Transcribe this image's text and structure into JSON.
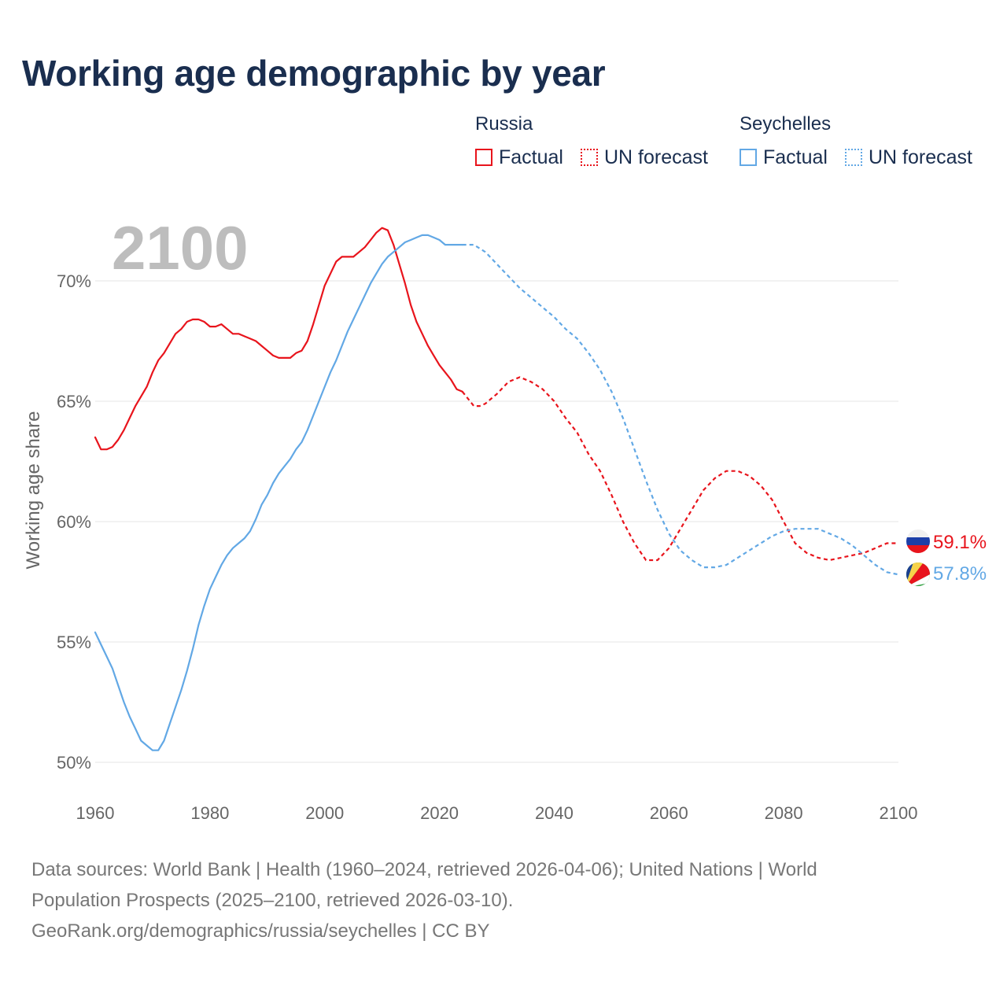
{
  "title": "Working age demographic by year",
  "legend": {
    "groups": [
      {
        "name": "Russia",
        "color": "#e8141c",
        "factual_label": "Factual",
        "forecast_label": "UN forecast"
      },
      {
        "name": "Seychelles",
        "color": "#62a8e5",
        "factual_label": "Factual",
        "forecast_label": "UN forecast"
      }
    ]
  },
  "year_watermark": "2100",
  "end_labels": {
    "russia": "59.1%",
    "seychelles": "57.8%"
  },
  "footer": {
    "line1": "Data sources: World Bank | Health (1960–2024, retrieved 2026-04-06); United Nations | World",
    "line2": "Population Prospects (2025–2100, retrieved 2026-03-10).",
    "line3": "GeoRank.org/demographics/russia/seychelles | CC BY"
  },
  "chart_data": {
    "type": "line",
    "title": "Working age demographic by year",
    "xlabel": "",
    "ylabel": "Working age share",
    "xlim": [
      1960,
      2100
    ],
    "ylim": [
      50,
      72.5
    ],
    "x_ticks": [
      1960,
      1980,
      2000,
      2020,
      2040,
      2060,
      2080,
      2100
    ],
    "y_ticks": [
      50,
      55,
      60,
      65,
      70
    ],
    "y_tick_labels": [
      "50%",
      "55%",
      "60%",
      "65%",
      "70%"
    ],
    "grid": "horizontal",
    "factual_end_year": 2024,
    "forecast_start_year": 2025,
    "series": [
      {
        "name": "Russia",
        "color": "#e8141c",
        "end_label": "59.1%",
        "points": [
          [
            1960,
            63.5
          ],
          [
            1961,
            63.0
          ],
          [
            1962,
            63.0
          ],
          [
            1963,
            63.1
          ],
          [
            1964,
            63.4
          ],
          [
            1965,
            63.8
          ],
          [
            1966,
            64.3
          ],
          [
            1967,
            64.8
          ],
          [
            1968,
            65.2
          ],
          [
            1969,
            65.6
          ],
          [
            1970,
            66.2
          ],
          [
            1971,
            66.7
          ],
          [
            1972,
            67.0
          ],
          [
            1973,
            67.4
          ],
          [
            1974,
            67.8
          ],
          [
            1975,
            68.0
          ],
          [
            1976,
            68.3
          ],
          [
            1977,
            68.4
          ],
          [
            1978,
            68.4
          ],
          [
            1979,
            68.3
          ],
          [
            1980,
            68.1
          ],
          [
            1981,
            68.1
          ],
          [
            1982,
            68.2
          ],
          [
            1983,
            68.0
          ],
          [
            1984,
            67.8
          ],
          [
            1985,
            67.8
          ],
          [
            1986,
            67.7
          ],
          [
            1987,
            67.6
          ],
          [
            1988,
            67.5
          ],
          [
            1989,
            67.3
          ],
          [
            1990,
            67.1
          ],
          [
            1991,
            66.9
          ],
          [
            1992,
            66.8
          ],
          [
            1993,
            66.8
          ],
          [
            1994,
            66.8
          ],
          [
            1995,
            67.0
          ],
          [
            1996,
            67.1
          ],
          [
            1997,
            67.5
          ],
          [
            1998,
            68.2
          ],
          [
            1999,
            69.0
          ],
          [
            2000,
            69.8
          ],
          [
            2001,
            70.3
          ],
          [
            2002,
            70.8
          ],
          [
            2003,
            71.0
          ],
          [
            2004,
            71.0
          ],
          [
            2005,
            71.0
          ],
          [
            2006,
            71.2
          ],
          [
            2007,
            71.4
          ],
          [
            2008,
            71.7
          ],
          [
            2009,
            72.0
          ],
          [
            2010,
            72.2
          ],
          [
            2011,
            72.1
          ],
          [
            2012,
            71.5
          ],
          [
            2013,
            70.7
          ],
          [
            2014,
            69.9
          ],
          [
            2015,
            69.0
          ],
          [
            2016,
            68.3
          ],
          [
            2017,
            67.8
          ],
          [
            2018,
            67.3
          ],
          [
            2019,
            66.9
          ],
          [
            2020,
            66.5
          ],
          [
            2021,
            66.2
          ],
          [
            2022,
            65.9
          ],
          [
            2023,
            65.5
          ],
          [
            2024,
            65.4
          ],
          [
            2025,
            65.1
          ],
          [
            2026,
            64.8
          ],
          [
            2027,
            64.8
          ],
          [
            2028,
            64.9
          ],
          [
            2029,
            65.1
          ],
          [
            2030,
            65.3
          ],
          [
            2032,
            65.8
          ],
          [
            2034,
            66.0
          ],
          [
            2036,
            65.8
          ],
          [
            2038,
            65.5
          ],
          [
            2040,
            65.0
          ],
          [
            2042,
            64.3
          ],
          [
            2044,
            63.7
          ],
          [
            2046,
            62.8
          ],
          [
            2048,
            62.1
          ],
          [
            2050,
            61.1
          ],
          [
            2052,
            60.0
          ],
          [
            2054,
            59.1
          ],
          [
            2056,
            58.4
          ],
          [
            2058,
            58.4
          ],
          [
            2060,
            58.9
          ],
          [
            2062,
            59.7
          ],
          [
            2064,
            60.5
          ],
          [
            2066,
            61.3
          ],
          [
            2068,
            61.8
          ],
          [
            2070,
            62.1
          ],
          [
            2072,
            62.1
          ],
          [
            2074,
            61.9
          ],
          [
            2076,
            61.5
          ],
          [
            2078,
            60.9
          ],
          [
            2080,
            60.0
          ],
          [
            2082,
            59.1
          ],
          [
            2084,
            58.7
          ],
          [
            2086,
            58.5
          ],
          [
            2088,
            58.4
          ],
          [
            2090,
            58.5
          ],
          [
            2092,
            58.6
          ],
          [
            2094,
            58.7
          ],
          [
            2096,
            58.9
          ],
          [
            2098,
            59.1
          ],
          [
            2100,
            59.1
          ]
        ]
      },
      {
        "name": "Seychelles",
        "color": "#62a8e5",
        "end_label": "57.8%",
        "points": [
          [
            1960,
            55.4
          ],
          [
            1961,
            54.9
          ],
          [
            1962,
            54.4
          ],
          [
            1963,
            53.9
          ],
          [
            1964,
            53.2
          ],
          [
            1965,
            52.5
          ],
          [
            1966,
            51.9
          ],
          [
            1967,
            51.4
          ],
          [
            1968,
            50.9
          ],
          [
            1969,
            50.7
          ],
          [
            1970,
            50.5
          ],
          [
            1971,
            50.5
          ],
          [
            1972,
            50.9
          ],
          [
            1973,
            51.6
          ],
          [
            1974,
            52.3
          ],
          [
            1975,
            53.0
          ],
          [
            1976,
            53.8
          ],
          [
            1977,
            54.7
          ],
          [
            1978,
            55.7
          ],
          [
            1979,
            56.5
          ],
          [
            1980,
            57.2
          ],
          [
            1981,
            57.7
          ],
          [
            1982,
            58.2
          ],
          [
            1983,
            58.6
          ],
          [
            1984,
            58.9
          ],
          [
            1985,
            59.1
          ],
          [
            1986,
            59.3
          ],
          [
            1987,
            59.6
          ],
          [
            1988,
            60.1
          ],
          [
            1989,
            60.7
          ],
          [
            1990,
            61.1
          ],
          [
            1991,
            61.6
          ],
          [
            1992,
            62.0
          ],
          [
            1993,
            62.3
          ],
          [
            1994,
            62.6
          ],
          [
            1995,
            63.0
          ],
          [
            1996,
            63.3
          ],
          [
            1997,
            63.8
          ],
          [
            1998,
            64.4
          ],
          [
            1999,
            65.0
          ],
          [
            2000,
            65.6
          ],
          [
            2001,
            66.2
          ],
          [
            2002,
            66.7
          ],
          [
            2003,
            67.3
          ],
          [
            2004,
            67.9
          ],
          [
            2005,
            68.4
          ],
          [
            2006,
            68.9
          ],
          [
            2007,
            69.4
          ],
          [
            2008,
            69.9
          ],
          [
            2009,
            70.3
          ],
          [
            2010,
            70.7
          ],
          [
            2011,
            71.0
          ],
          [
            2012,
            71.2
          ],
          [
            2013,
            71.4
          ],
          [
            2014,
            71.6
          ],
          [
            2015,
            71.7
          ],
          [
            2016,
            71.8
          ],
          [
            2017,
            71.9
          ],
          [
            2018,
            71.9
          ],
          [
            2019,
            71.8
          ],
          [
            2020,
            71.7
          ],
          [
            2021,
            71.5
          ],
          [
            2022,
            71.5
          ],
          [
            2023,
            71.5
          ],
          [
            2024,
            71.5
          ],
          [
            2025,
            71.5
          ],
          [
            2026,
            71.5
          ],
          [
            2028,
            71.2
          ],
          [
            2030,
            70.7
          ],
          [
            2032,
            70.2
          ],
          [
            2034,
            69.7
          ],
          [
            2036,
            69.3
          ],
          [
            2038,
            68.9
          ],
          [
            2040,
            68.5
          ],
          [
            2042,
            68.0
          ],
          [
            2044,
            67.6
          ],
          [
            2046,
            67.0
          ],
          [
            2048,
            66.3
          ],
          [
            2050,
            65.4
          ],
          [
            2052,
            64.3
          ],
          [
            2054,
            63.0
          ],
          [
            2056,
            61.7
          ],
          [
            2058,
            60.5
          ],
          [
            2060,
            59.5
          ],
          [
            2062,
            58.8
          ],
          [
            2064,
            58.4
          ],
          [
            2066,
            58.1
          ],
          [
            2068,
            58.1
          ],
          [
            2070,
            58.2
          ],
          [
            2072,
            58.5
          ],
          [
            2074,
            58.8
          ],
          [
            2076,
            59.1
          ],
          [
            2078,
            59.4
          ],
          [
            2080,
            59.6
          ],
          [
            2082,
            59.7
          ],
          [
            2084,
            59.7
          ],
          [
            2086,
            59.7
          ],
          [
            2088,
            59.5
          ],
          [
            2090,
            59.3
          ],
          [
            2092,
            59.0
          ],
          [
            2094,
            58.6
          ],
          [
            2096,
            58.2
          ],
          [
            2098,
            57.9
          ],
          [
            2100,
            57.8
          ]
        ]
      }
    ]
  }
}
